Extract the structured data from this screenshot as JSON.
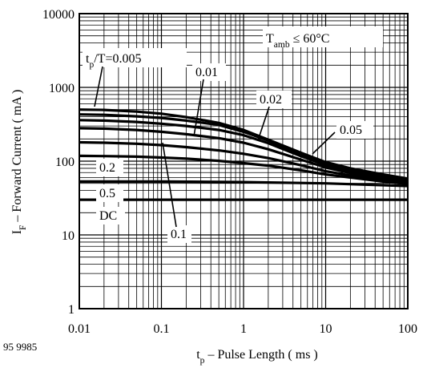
{
  "figure_code": "95 9985",
  "chart_data": {
    "type": "line",
    "title": "",
    "xlabel": {
      "main": "t",
      "sub": "p",
      "rest": " – Pulse Length ( ms )"
    },
    "ylabel": {
      "main": "I",
      "sub": "F",
      "rest": " – Forward Current ( mA )"
    },
    "xscale": "log",
    "yscale": "log",
    "xlim": [
      0.01,
      100
    ],
    "ylim": [
      1,
      10000
    ],
    "xticks": [
      0.01,
      0.1,
      1,
      10,
      100
    ],
    "xtick_labels": [
      "0.01",
      "0.1",
      "1",
      "10",
      "100"
    ],
    "yticks": [
      1,
      10,
      100,
      1000,
      10000
    ],
    "ytick_labels": [
      "1",
      "10",
      "100",
      "1000",
      "10000"
    ],
    "grid": true,
    "annotations": {
      "condition": {
        "main": "T",
        "sub": "amb",
        "rest": " ≤ 60°C"
      },
      "duty_prefix": {
        "main": "t",
        "sub": "p",
        "rest": "/T=0.005"
      }
    },
    "series": [
      {
        "name": "0.005",
        "label": "t_p/T=0.005",
        "x": [
          0.01,
          0.02,
          0.05,
          0.1,
          0.2,
          0.5,
          1,
          2,
          5,
          10,
          20,
          50,
          100
        ],
        "y": [
          500,
          495,
          470,
          440,
          395,
          330,
          265,
          195,
          130,
          97,
          80,
          66,
          58
        ]
      },
      {
        "name": "0.01",
        "label": "0.01",
        "x": [
          0.01,
          0.02,
          0.05,
          0.1,
          0.2,
          0.5,
          1,
          2,
          5,
          10,
          20,
          50,
          100
        ],
        "y": [
          430,
          425,
          405,
          385,
          355,
          310,
          250,
          190,
          125,
          93,
          77,
          63,
          56
        ]
      },
      {
        "name": "0.02",
        "label": "0.02",
        "x": [
          0.01,
          0.02,
          0.05,
          0.1,
          0.2,
          0.5,
          1,
          2,
          5,
          10,
          20,
          50,
          100
        ],
        "y": [
          360,
          355,
          340,
          322,
          300,
          265,
          225,
          175,
          117,
          88,
          73,
          60,
          54
        ]
      },
      {
        "name": "0.05",
        "label": "0.05",
        "x": [
          0.01,
          0.02,
          0.05,
          0.1,
          0.2,
          0.5,
          1,
          2,
          5,
          10,
          20,
          50,
          100
        ],
        "y": [
          280,
          276,
          265,
          250,
          232,
          205,
          178,
          145,
          105,
          82,
          69,
          57,
          52
        ]
      },
      {
        "name": "0.1",
        "label": "0.1",
        "x": [
          0.01,
          0.02,
          0.05,
          0.1,
          0.2,
          0.5,
          1,
          2,
          5,
          10,
          20,
          50,
          100
        ],
        "y": [
          180,
          178,
          172,
          165,
          155,
          140,
          126,
          110,
          88,
          73,
          64,
          55,
          50
        ]
      },
      {
        "name": "0.2",
        "label": "0.2",
        "x": [
          0.01,
          0.02,
          0.05,
          0.1,
          0.2,
          0.5,
          1,
          2,
          5,
          10,
          20,
          50,
          100
        ],
        "y": [
          118,
          117,
          115,
          112,
          108,
          101,
          94,
          87,
          75,
          66,
          60,
          53,
          49
        ]
      },
      {
        "name": "0.5",
        "label": "0.5",
        "x": [
          0.01,
          0.1,
          1,
          10,
          30,
          100
        ],
        "y": [
          53,
          53,
          52,
          50,
          48,
          46
        ]
      },
      {
        "name": "DC",
        "label": "DC",
        "x": [
          0.01,
          100
        ],
        "y": [
          30,
          30
        ]
      }
    ]
  }
}
